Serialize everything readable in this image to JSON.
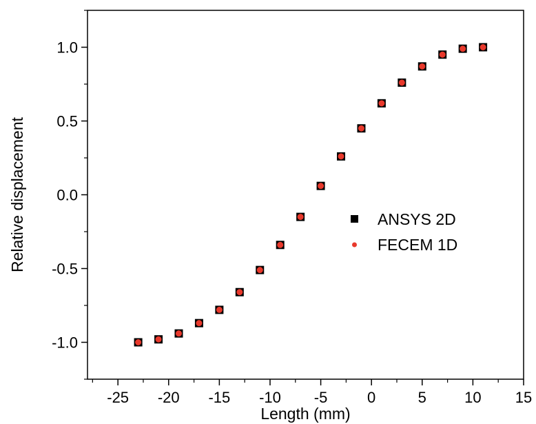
{
  "chart_data": {
    "type": "scatter",
    "title": "",
    "xlabel": "Length (mm)",
    "ylabel": "Relative displacement",
    "xlim": [
      -28,
      15
    ],
    "ylim": [
      -1.25,
      1.25
    ],
    "xticks": [
      -25,
      -20,
      -15,
      -10,
      -5,
      0,
      5,
      10,
      15
    ],
    "xtick_labels": [
      "-25",
      "-20",
      "-15",
      "-10",
      "-5",
      "0",
      "5",
      "10",
      "15"
    ],
    "yticks": [
      -1.0,
      -0.5,
      0.0,
      0.5,
      1.0
    ],
    "ytick_labels": [
      "-1.0",
      "-0.5",
      "0.0",
      "0.5",
      "1.0"
    ],
    "grid": false,
    "legend_position": "center-right",
    "series": [
      {
        "name": "ANSYS 2D",
        "marker": "square",
        "color": "#000000",
        "x": [
          -23.0,
          -21.0,
          -19.0,
          -17.0,
          -15.0,
          -13.0,
          -11.0,
          -9.0,
          -7.0,
          -5.0,
          -3.0,
          -1.0,
          1.0,
          3.0,
          5.0,
          7.0,
          9.0,
          11.0
        ],
        "y": [
          -1.0,
          -0.98,
          -0.94,
          -0.87,
          -0.78,
          -0.66,
          -0.51,
          -0.34,
          -0.15,
          0.06,
          0.26,
          0.45,
          0.62,
          0.76,
          0.87,
          0.95,
          0.99,
          1.0
        ]
      },
      {
        "name": "FECEM 1D",
        "marker": "circle",
        "color": "#e8392c",
        "x": [
          -23.0,
          -21.0,
          -19.0,
          -17.0,
          -15.0,
          -13.0,
          -11.0,
          -9.0,
          -7.0,
          -5.0,
          -3.0,
          -1.0,
          1.0,
          3.0,
          5.0,
          7.0,
          9.0,
          11.0
        ],
        "y": [
          -1.0,
          -0.98,
          -0.94,
          -0.87,
          -0.78,
          -0.66,
          -0.51,
          -0.34,
          -0.15,
          0.06,
          0.26,
          0.45,
          0.62,
          0.76,
          0.87,
          0.95,
          0.99,
          1.0
        ]
      }
    ]
  }
}
